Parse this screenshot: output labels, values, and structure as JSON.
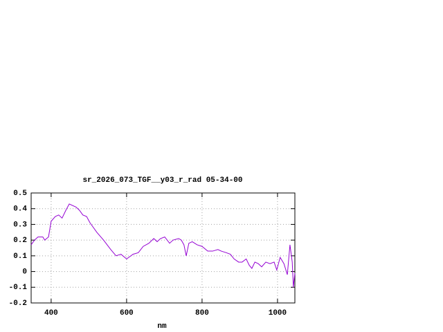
{
  "chart_data": {
    "type": "line",
    "title": "sr_2026_073_TGF__y03_r_rad 05-34-00",
    "x_label": "nm",
    "x": [
      347,
      356,
      365,
      378,
      383,
      393,
      400,
      411,
      420,
      429,
      439,
      448,
      466,
      475,
      484,
      494,
      503,
      521,
      539,
      558,
      572,
      585,
      600,
      617,
      631,
      644,
      659,
      672,
      681,
      690,
      701,
      714,
      723,
      738,
      745,
      752,
      758,
      765,
      774,
      787,
      800,
      815,
      828,
      842,
      851,
      864,
      875,
      885,
      897,
      906,
      917,
      925,
      932,
      940,
      949,
      958,
      969,
      980,
      991,
      998,
      1007,
      1017,
      1026,
      1033,
      1039,
      1042,
      1046
    ],
    "values": [
      0.17,
      0.2,
      0.22,
      0.22,
      0.2,
      0.22,
      0.32,
      0.35,
      0.36,
      0.34,
      0.39,
      0.43,
      0.41,
      0.39,
      0.36,
      0.35,
      0.31,
      0.25,
      0.2,
      0.14,
      0.1,
      0.11,
      0.08,
      0.11,
      0.12,
      0.16,
      0.18,
      0.21,
      0.19,
      0.21,
      0.22,
      0.18,
      0.2,
      0.21,
      0.2,
      0.17,
      0.1,
      0.18,
      0.19,
      0.17,
      0.16,
      0.13,
      0.13,
      0.14,
      0.13,
      0.12,
      0.11,
      0.08,
      0.06,
      0.06,
      0.08,
      0.04,
      0.02,
      0.06,
      0.05,
      0.03,
      0.06,
      0.05,
      0.06,
      0.01,
      0.09,
      0.05,
      -0.02,
      0.17,
      0.06,
      -0.1,
      -0.01
    ],
    "color": "#9400d3",
    "xlim": [
      347,
      1046
    ],
    "xticks": [
      400,
      600,
      800,
      1000
    ],
    "ylim": [
      -0.2,
      0.5
    ],
    "yticks": [
      -0.2,
      -0.1,
      0,
      0.1,
      0.2,
      0.3,
      0.4,
      0.5
    ],
    "grid": true
  }
}
